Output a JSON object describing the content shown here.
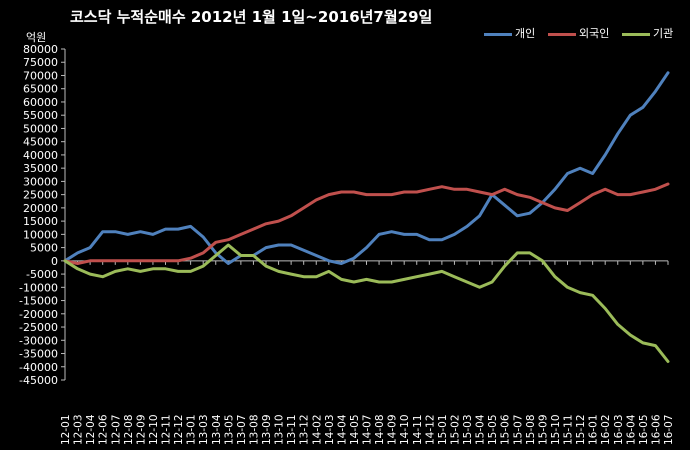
{
  "chart_data": {
    "type": "line",
    "title": "코스닥  누적순매수 2012년 1월 1일~2016년7월29일",
    "unit_label": "억원",
    "ylim": [
      -45000,
      80000
    ],
    "yticks": [
      80000,
      75000,
      70000,
      65000,
      60000,
      55000,
      50000,
      45000,
      40000,
      35000,
      30000,
      25000,
      20000,
      15000,
      10000,
      5000,
      0,
      -5000,
      -10000,
      -15000,
      -20000,
      -25000,
      -30000,
      -35000,
      -40000,
      -45000
    ],
    "ytick_labels": [
      "80000",
      "75000",
      "70000",
      "65000",
      "60000",
      "55000",
      "50000",
      "45000",
      "40000",
      "35000",
      "30000",
      "25000",
      "20000",
      "15000",
      "10000",
      "5000",
      "0",
      "-5000",
      "-10000",
      "-15000",
      "-20000",
      "-25000",
      "-30000",
      "-35000",
      "-40000",
      "-45000"
    ],
    "categories": [
      "12-01",
      "12-03",
      "12-04",
      "12-06",
      "12-07",
      "12-08",
      "12-09",
      "12-10",
      "12-11",
      "12-12",
      "13-01",
      "13-03",
      "13-04",
      "13-05",
      "13-07",
      "13-08",
      "13-09",
      "13-10",
      "13-11",
      "13-12",
      "14-02",
      "14-03",
      "14-04",
      "14-05",
      "14-07",
      "14-08",
      "14-09",
      "14-10",
      "14-11",
      "14-12",
      "15-01",
      "15-02",
      "15-03",
      "15-04",
      "15-05",
      "15-06",
      "15-07",
      "15-08",
      "15-09",
      "15-10",
      "15-11",
      "15-12",
      "16-01",
      "16-02",
      "16-03",
      "16-04",
      "16-05",
      "16-06",
      "16-07"
    ],
    "grid": false,
    "legend_position": "top-right",
    "series": [
      {
        "name": "개인",
        "color": "#4F81BD",
        "values": [
          0,
          3000,
          5000,
          11000,
          11000,
          10000,
          11000,
          10000,
          12000,
          12000,
          13000,
          9000,
          3000,
          -1000,
          2000,
          2000,
          5000,
          6000,
          6000,
          4000,
          2000,
          0,
          -1000,
          1000,
          5000,
          10000,
          11000,
          10000,
          10000,
          8000,
          8000,
          10000,
          13000,
          17000,
          25000,
          21000,
          17000,
          18000,
          22000,
          27000,
          33000,
          35000,
          33000,
          40000,
          48000,
          55000,
          58000,
          64000,
          71000
        ]
      },
      {
        "name": "외국인",
        "color": "#C0504D",
        "values": [
          0,
          -1000,
          0,
          0,
          0,
          0,
          0,
          0,
          0,
          0,
          1000,
          3000,
          7000,
          8000,
          10000,
          12000,
          14000,
          15000,
          17000,
          20000,
          23000,
          25000,
          26000,
          26000,
          25000,
          25000,
          25000,
          26000,
          26000,
          27000,
          28000,
          27000,
          27000,
          26000,
          25000,
          27000,
          25000,
          24000,
          22000,
          20000,
          19000,
          22000,
          25000,
          27000,
          25000,
          25000,
          26000,
          27000,
          29000
        ]
      },
      {
        "name": "기관",
        "color": "#9BBB59",
        "values": [
          0,
          -3000,
          -5000,
          -6000,
          -4000,
          -3000,
          -4000,
          -3000,
          -3000,
          -4000,
          -4000,
          -2000,
          2000,
          6000,
          2000,
          2000,
          -2000,
          -4000,
          -5000,
          -6000,
          -6000,
          -4000,
          -7000,
          -8000,
          -7000,
          -8000,
          -8000,
          -7000,
          -6000,
          -5000,
          -4000,
          -6000,
          -8000,
          -10000,
          -8000,
          -2000,
          3000,
          3000,
          0,
          -6000,
          -10000,
          -12000,
          -13000,
          -18000,
          -24000,
          -28000,
          -31000,
          -32000,
          -38000
        ]
      }
    ]
  }
}
